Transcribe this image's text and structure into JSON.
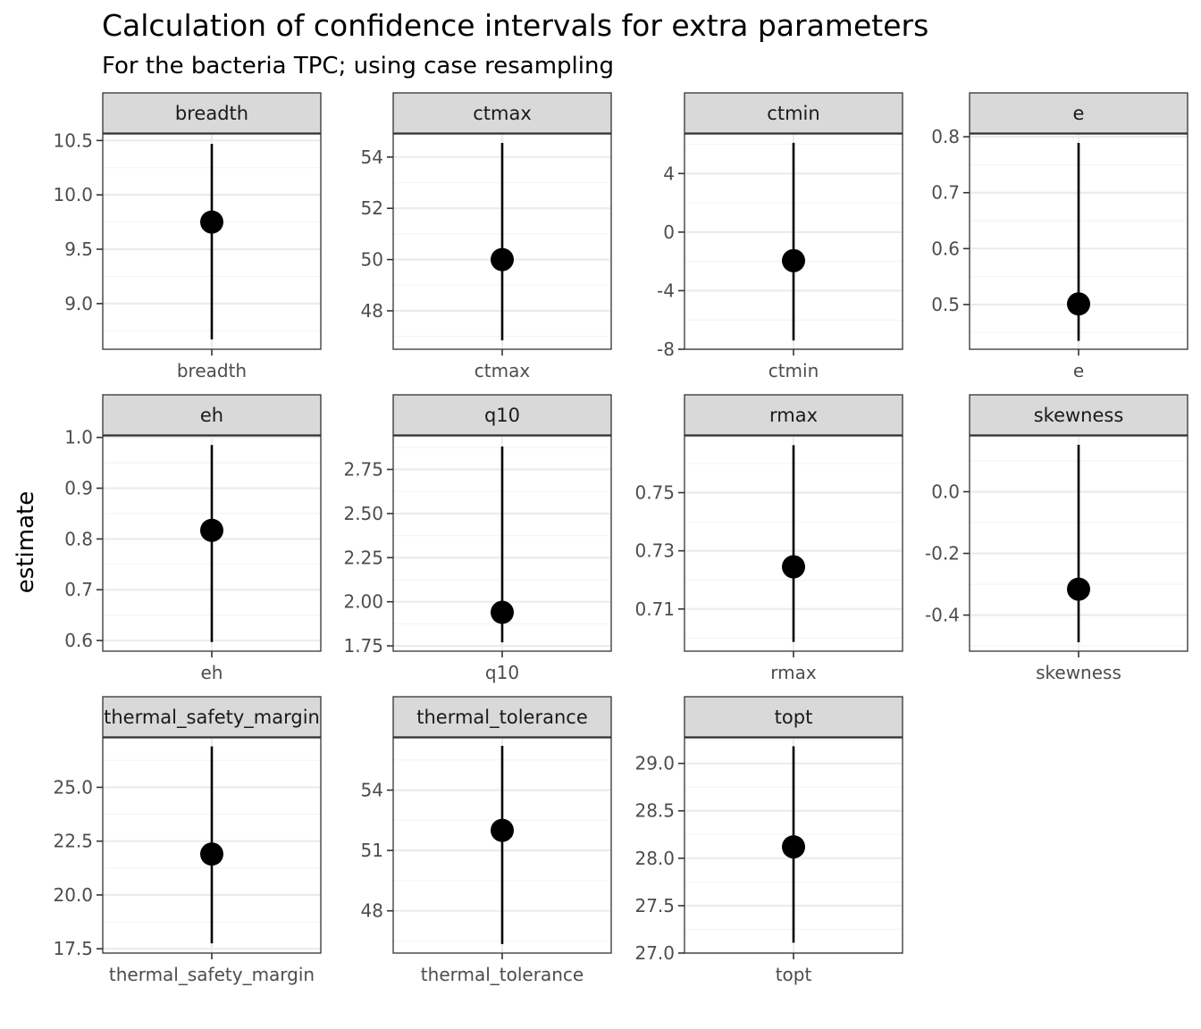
{
  "chart_data": {
    "type": "pointrange-facets",
    "title": "Calculation of confidence intervals for extra parameters",
    "subtitle": "For the bacteria TPC; using case resampling",
    "ylabel": "estimate",
    "grid": true,
    "colors": {
      "point": "#000000",
      "strip_fill": "#d9d9d9",
      "strip_border": "#333333",
      "grid_major": "#ebebeb",
      "grid_minor": "#f4f4f4",
      "panel_border": "#333333"
    },
    "facets": [
      {
        "name": "breadth",
        "x_label": "breadth",
        "estimate": 9.75,
        "conf_lower": 8.67,
        "conf_upper": 10.47,
        "ylim": [
          8.58,
          10.56
        ],
        "breaks": [
          9.0,
          9.5,
          10.0,
          10.5
        ],
        "tick_labels": [
          "9.0",
          "9.5",
          "10.0",
          "10.5"
        ]
      },
      {
        "name": "ctmax",
        "x_label": "ctmax",
        "estimate": 50.0,
        "conf_lower": 46.85,
        "conf_upper": 54.55,
        "ylim": [
          46.5,
          54.9
        ],
        "breaks": [
          48,
          50,
          52,
          54
        ],
        "tick_labels": [
          "48",
          "50",
          "52",
          "54"
        ]
      },
      {
        "name": "ctmin",
        "x_label": "ctmin",
        "estimate": -1.95,
        "conf_lower": -7.4,
        "conf_upper": 6.1,
        "ylim": [
          -8.0,
          6.7
        ],
        "breaks": [
          -8,
          -4,
          0,
          4
        ],
        "tick_labels": [
          "-8",
          "-4",
          "0",
          "4"
        ]
      },
      {
        "name": "e",
        "x_label": "e",
        "estimate": 0.501,
        "conf_lower": 0.435,
        "conf_upper": 0.789,
        "ylim": [
          0.42,
          0.805
        ],
        "breaks": [
          0.5,
          0.6,
          0.7,
          0.8
        ],
        "tick_labels": [
          "0.5",
          "0.6",
          "0.7",
          "0.8"
        ]
      },
      {
        "name": "eh",
        "x_label": "eh",
        "estimate": 0.817,
        "conf_lower": 0.597,
        "conf_upper": 0.985,
        "ylim": [
          0.579,
          1.003
        ],
        "breaks": [
          0.6,
          0.7,
          0.8,
          0.9,
          1.0
        ],
        "tick_labels": [
          "0.6",
          "0.7",
          "0.8",
          "0.9",
          "1.0"
        ]
      },
      {
        "name": "q10",
        "x_label": "q10",
        "estimate": 1.94,
        "conf_lower": 1.77,
        "conf_upper": 2.88,
        "ylim": [
          1.72,
          2.94
        ],
        "breaks": [
          1.75,
          2.0,
          2.25,
          2.5,
          2.75
        ],
        "tick_labels": [
          "1.75",
          "2.00",
          "2.25",
          "2.50",
          "2.75"
        ]
      },
      {
        "name": "rmax",
        "x_label": "rmax",
        "estimate": 0.7245,
        "conf_lower": 0.6987,
        "conf_upper": 0.7663,
        "ylim": [
          0.6955,
          0.7695
        ],
        "breaks": [
          0.71,
          0.73,
          0.75
        ],
        "tick_labels": [
          "0.71",
          "0.73",
          "0.75"
        ]
      },
      {
        "name": "skewness",
        "x_label": "skewness",
        "estimate": -0.316,
        "conf_lower": -0.488,
        "conf_upper": 0.152,
        "ylim": [
          -0.517,
          0.181
        ],
        "breaks": [
          -0.4,
          -0.2,
          0.0
        ],
        "tick_labels": [
          "-0.4",
          "-0.2",
          "0.0"
        ]
      },
      {
        "name": "thermal_safety_margin",
        "strip_label": "thermal_safety_margin",
        "x_label": "thermal_safety_margin",
        "estimate": 21.9,
        "conf_lower": 17.75,
        "conf_upper": 26.9,
        "ylim": [
          17.3,
          27.3
        ],
        "breaks": [
          17.5,
          20.0,
          22.5,
          25.0
        ],
        "tick_labels": [
          "17.5",
          "20.0",
          "22.5",
          "25.0"
        ]
      },
      {
        "name": "thermal_tolerance",
        "x_label": "thermal_tolerance",
        "estimate": 52.0,
        "conf_lower": 46.35,
        "conf_upper": 56.2,
        "ylim": [
          45.9,
          56.6
        ],
        "breaks": [
          48,
          51,
          54
        ],
        "tick_labels": [
          "48",
          "51",
          "54"
        ]
      },
      {
        "name": "topt",
        "x_label": "topt",
        "estimate": 28.12,
        "conf_lower": 27.11,
        "conf_upper": 29.18,
        "ylim": [
          27.0,
          29.27
        ],
        "breaks": [
          27.0,
          27.5,
          28.0,
          28.5,
          29.0
        ],
        "tick_labels": [
          "27.0",
          "27.5",
          "28.0",
          "28.5",
          "29.0"
        ]
      }
    ]
  }
}
